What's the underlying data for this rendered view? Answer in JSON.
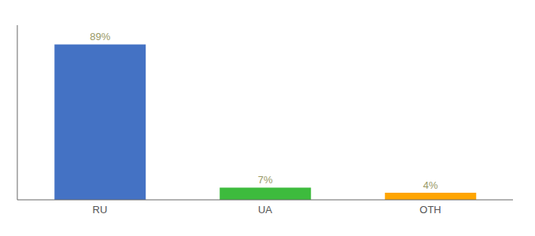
{
  "chart_data": {
    "type": "bar",
    "categories": [
      "RU",
      "UA",
      "OTH"
    ],
    "values": [
      89,
      7,
      4
    ],
    "value_labels": [
      "89%",
      "7%",
      "4%"
    ],
    "colors": [
      "#4472c4",
      "#3dbb3d",
      "#ffa500"
    ],
    "ylim": [
      0,
      100
    ],
    "data_labels": true,
    "tick_labels": "x",
    "grid": false
  }
}
